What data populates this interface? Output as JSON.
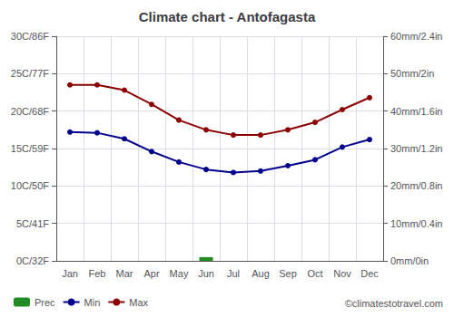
{
  "chart_data": {
    "type": "line",
    "title": "Climate chart - Antofagasta",
    "categories": [
      "Jan",
      "Feb",
      "Mar",
      "Apr",
      "May",
      "Jun",
      "Jul",
      "Aug",
      "Sep",
      "Oct",
      "Nov",
      "Dec"
    ],
    "series": [
      {
        "name": "Prec",
        "type": "bar",
        "axis": "y2",
        "color": "#228B22",
        "values": [
          0,
          0,
          0,
          0,
          0,
          1.0,
          0,
          0,
          0,
          0,
          0,
          0
        ]
      },
      {
        "name": "Min",
        "type": "line",
        "color": "#00008B",
        "marker": "circle",
        "values": [
          17.2,
          17.1,
          16.3,
          14.6,
          13.2,
          12.2,
          11.8,
          12.0,
          12.7,
          13.5,
          15.2,
          16.2
        ]
      },
      {
        "name": "Max",
        "type": "line",
        "color": "#8B0000",
        "marker": "circle",
        "values": [
          23.5,
          23.5,
          22.8,
          20.9,
          18.8,
          17.5,
          16.8,
          16.8,
          17.5,
          18.5,
          20.2,
          21.8
        ]
      }
    ],
    "ylim": [
      0,
      30
    ],
    "yticks": [
      {
        "value": 0,
        "label": "0C/32F"
      },
      {
        "value": 5,
        "label": "5C/41F"
      },
      {
        "value": 10,
        "label": "10C/50F"
      },
      {
        "value": 15,
        "label": "15C/59F"
      },
      {
        "value": 20,
        "label": "20C/68F"
      },
      {
        "value": 25,
        "label": "25C/77F"
      },
      {
        "value": 30,
        "label": "30C/86F"
      }
    ],
    "y2lim": [
      0,
      60
    ],
    "y2ticks": [
      {
        "value": 0,
        "label": "0mm/0in"
      },
      {
        "value": 10,
        "label": "10mm/0.4in"
      },
      {
        "value": 20,
        "label": "20mm/0.8in"
      },
      {
        "value": 30,
        "label": "30mm/1.2in"
      },
      {
        "value": 40,
        "label": "40mm/1.6in"
      },
      {
        "value": 50,
        "label": "50mm/2in"
      },
      {
        "value": 60,
        "label": "60mm/2.4in"
      }
    ],
    "grid": true,
    "legend": "lower left",
    "annotations": [
      "©climatestotravel.com"
    ]
  }
}
